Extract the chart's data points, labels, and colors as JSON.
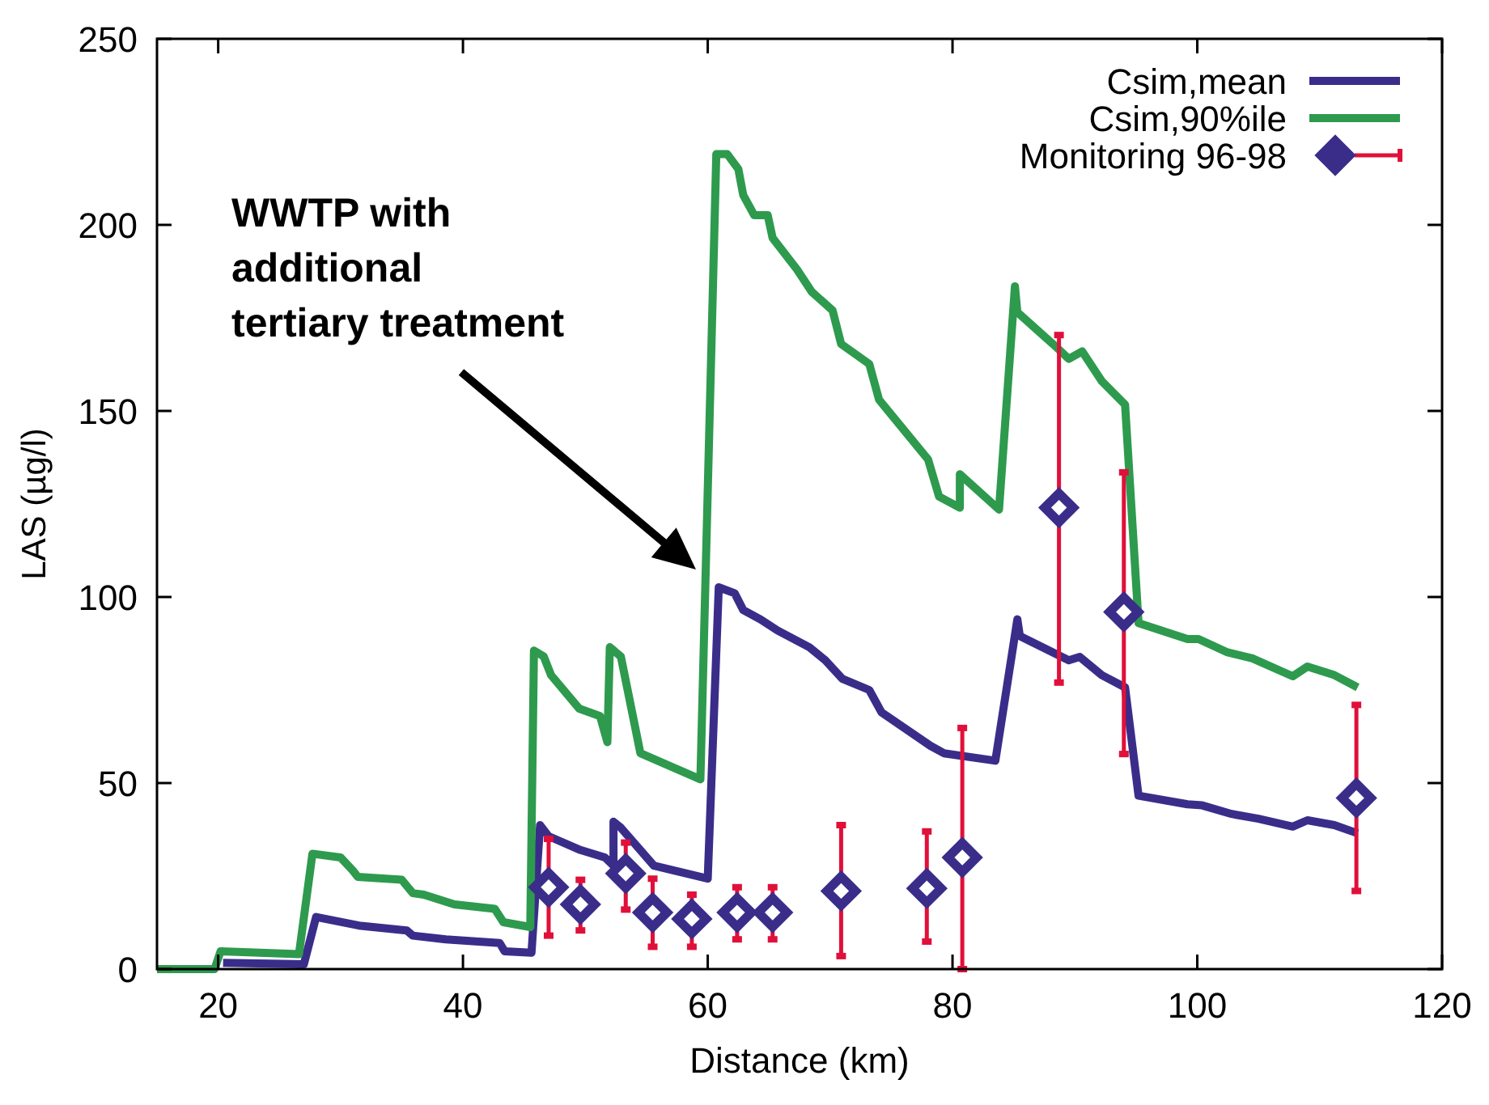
{
  "chart_data": {
    "type": "line",
    "xlabel": "Distance (km)",
    "ylabel": "LAS (µg/l)",
    "xlim": [
      15,
      120
    ],
    "ylim": [
      0,
      250
    ],
    "xticks": [
      20,
      40,
      60,
      80,
      100,
      120
    ],
    "yticks": [
      0,
      50,
      100,
      150,
      200,
      250
    ],
    "grid": false,
    "legend": "top right",
    "line_style": "solid",
    "annotations": [
      "WWTP with\nadditional\ntertiary treatment"
    ],
    "series": [
      {
        "name": "Csim,mean",
        "color": "#3a2d8a",
        "x": [
          20.4,
          27,
          28,
          31.5,
          35.4,
          35.9,
          38.6,
          43,
          43.4,
          45.6,
          46.3,
          47,
          49.6,
          51.6,
          52.3,
          52.3,
          52.9,
          55.6,
          60,
          60.9,
          62.2,
          62.9,
          64.3,
          65.7,
          68.3,
          69.6,
          71,
          73.2,
          74.2,
          78.2,
          79.3,
          83.5,
          85.3,
          85.5,
          89.5,
          90.4,
          92.2,
          94.1,
          95.2,
          99.2,
          100.4,
          102.8,
          105,
          107.8,
          109,
          111.2,
          113.1
        ],
        "values": [
          1.7,
          1.3,
          14,
          11.7,
          10.4,
          9,
          8,
          7,
          4.8,
          4.4,
          38.7,
          35.7,
          32,
          30,
          27.8,
          39.6,
          38,
          27.8,
          24.3,
          102.6,
          101,
          96.5,
          94,
          91,
          86.5,
          83,
          78,
          75,
          69,
          60,
          58,
          56,
          94,
          89.5,
          83,
          83.9,
          79,
          75.7,
          46.6,
          44.3,
          44,
          41.7,
          40.4,
          38.3,
          40,
          38.7,
          36.5
        ]
      },
      {
        "name": "Csim,90%ile",
        "color": "#2e9a4e",
        "x": [
          15,
          19.7,
          20.2,
          26.6,
          27.7,
          30,
          31,
          31.4,
          35,
          35.9,
          36.8,
          39.3,
          42.6,
          43.3,
          45.5,
          45.8,
          46.6,
          47.2,
          49.5,
          51.2,
          51.8,
          52,
          52.9,
          54.5,
          59.4,
          60.7,
          61.6,
          62.5,
          62.9,
          63.8,
          64.9,
          65.3,
          67.3,
          68.5,
          70.2,
          70.9,
          73.2,
          74,
          78,
          78.9,
          80.6,
          80.6,
          83.8,
          85.1,
          85.3,
          88.2,
          89.5,
          90.6,
          92.2,
          94.1,
          95.2,
          99.2,
          100.1,
          102.4,
          104.5,
          107.8,
          109,
          111.2,
          113.1
        ],
        "values": [
          0,
          0,
          4.8,
          4,
          31,
          30,
          26.5,
          24.8,
          24,
          20.4,
          20,
          17.4,
          16.2,
          12.6,
          11.3,
          85.6,
          84,
          79,
          70,
          68,
          61,
          86.5,
          84,
          58,
          51,
          219,
          219,
          215,
          208,
          202.6,
          202.6,
          196.5,
          188,
          182,
          177,
          168,
          162.6,
          153,
          137,
          127,
          124,
          133,
          123.5,
          183.5,
          176.5,
          168,
          164,
          166,
          158,
          151.7,
          93,
          88.7,
          88.7,
          85.2,
          83.5,
          78.7,
          81.3,
          79,
          75.7
        ]
      },
      {
        "name": "Monitoring 96-98",
        "color": "#3a2d8a",
        "type": "scatter",
        "marker": "diamond",
        "x": [
          47,
          49.6,
          53.3,
          55.5,
          58.7,
          62.4,
          65.3,
          70.9,
          77.9,
          80.8,
          88.7,
          94,
          113
        ],
        "values": [
          22,
          17.4,
          25.7,
          15.2,
          13.5,
          15.2,
          15.2,
          21,
          21.7,
          30,
          124,
          96,
          46
        ],
        "errors": [
          [
            9,
            35
          ],
          [
            10.4,
            24
          ],
          [
            16,
            34
          ],
          [
            6,
            24.3
          ],
          [
            6,
            20
          ],
          [
            8,
            22
          ],
          [
            8,
            22
          ],
          [
            3.5,
            38.7
          ],
          [
            7.4,
            37
          ],
          [
            0,
            64.8
          ],
          [
            77,
            170.4
          ],
          [
            57.8,
            133.5
          ],
          [
            21,
            71
          ]
        ]
      }
    ]
  }
}
